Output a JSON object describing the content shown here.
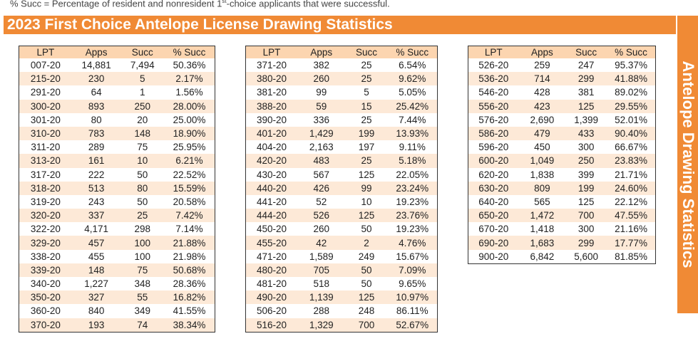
{
  "note": {
    "prefix": "% Succ = Percentage of resident and nonresident 1",
    "sup": "st",
    "suffix": "-choice applicants that were successful."
  },
  "title": "2023  First Choice Antelope License Drawing Statistics",
  "side_label": "Antelope Drawing Statistics",
  "colors": {
    "accent": "#f08a35",
    "header_bg": "#fcd5b0",
    "stripe": "#fde9d7"
  },
  "headers": [
    "LPT",
    "Apps",
    "Succ",
    "% Succ"
  ],
  "tables": [
    [
      [
        "007-20",
        "14,881",
        "7,494",
        "50.36%"
      ],
      [
        "215-20",
        "230",
        "5",
        "2.17%"
      ],
      [
        "291-20",
        "64",
        "1",
        "1.56%"
      ],
      [
        "300-20",
        "893",
        "250",
        "28.00%"
      ],
      [
        "301-20",
        "80",
        "20",
        "25.00%"
      ],
      [
        "310-20",
        "783",
        "148",
        "18.90%"
      ],
      [
        "311-20",
        "289",
        "75",
        "25.95%"
      ],
      [
        "313-20",
        "161",
        "10",
        "6.21%"
      ],
      [
        "317-20",
        "222",
        "50",
        "22.52%"
      ],
      [
        "318-20",
        "513",
        "80",
        "15.59%"
      ],
      [
        "319-20",
        "243",
        "50",
        "20.58%"
      ],
      [
        "320-20",
        "337",
        "25",
        "7.42%"
      ],
      [
        "322-20",
        "4,171",
        "298",
        "7.14%"
      ],
      [
        "329-20",
        "457",
        "100",
        "21.88%"
      ],
      [
        "338-20",
        "455",
        "100",
        "21.98%"
      ],
      [
        "339-20",
        "148",
        "75",
        "50.68%"
      ],
      [
        "340-20",
        "1,227",
        "348",
        "28.36%"
      ],
      [
        "350-20",
        "327",
        "55",
        "16.82%"
      ],
      [
        "360-20",
        "840",
        "349",
        "41.55%"
      ],
      [
        "370-20",
        "193",
        "74",
        "38.34%"
      ]
    ],
    [
      [
        "371-20",
        "382",
        "25",
        "6.54%"
      ],
      [
        "380-20",
        "260",
        "25",
        "9.62%"
      ],
      [
        "381-20",
        "99",
        "5",
        "5.05%"
      ],
      [
        "388-20",
        "59",
        "15",
        "25.42%"
      ],
      [
        "390-20",
        "336",
        "25",
        "7.44%"
      ],
      [
        "401-20",
        "1,429",
        "199",
        "13.93%"
      ],
      [
        "404-20",
        "2,163",
        "197",
        "9.11%"
      ],
      [
        "420-20",
        "483",
        "25",
        "5.18%"
      ],
      [
        "430-20",
        "567",
        "125",
        "22.05%"
      ],
      [
        "440-20",
        "426",
        "99",
        "23.24%"
      ],
      [
        "441-20",
        "52",
        "10",
        "19.23%"
      ],
      [
        "444-20",
        "526",
        "125",
        "23.76%"
      ],
      [
        "450-20",
        "260",
        "50",
        "19.23%"
      ],
      [
        "455-20",
        "42",
        "2",
        "4.76%"
      ],
      [
        "471-20",
        "1,589",
        "249",
        "15.67%"
      ],
      [
        "480-20",
        "705",
        "50",
        "7.09%"
      ],
      [
        "481-20",
        "518",
        "50",
        "9.65%"
      ],
      [
        "490-20",
        "1,139",
        "125",
        "10.97%"
      ],
      [
        "506-20",
        "288",
        "248",
        "86.11%"
      ],
      [
        "516-20",
        "1,329",
        "700",
        "52.67%"
      ]
    ],
    [
      [
        "526-20",
        "259",
        "247",
        "95.37%"
      ],
      [
        "536-20",
        "714",
        "299",
        "41.88%"
      ],
      [
        "546-20",
        "428",
        "381",
        "89.02%"
      ],
      [
        "556-20",
        "423",
        "125",
        "29.55%"
      ],
      [
        "576-20",
        "2,690",
        "1,399",
        "52.01%"
      ],
      [
        "586-20",
        "479",
        "433",
        "90.40%"
      ],
      [
        "596-20",
        "450",
        "300",
        "66.67%"
      ],
      [
        "600-20",
        "1,049",
        "250",
        "23.83%"
      ],
      [
        "620-20",
        "1,838",
        "399",
        "21.71%"
      ],
      [
        "630-20",
        "809",
        "199",
        "24.60%"
      ],
      [
        "640-20",
        "565",
        "125",
        "22.12%"
      ],
      [
        "650-20",
        "1,472",
        "700",
        "47.55%"
      ],
      [
        "670-20",
        "1,418",
        "300",
        "21.16%"
      ],
      [
        "690-20",
        "1,683",
        "299",
        "17.77%"
      ],
      [
        "900-20",
        "6,842",
        "5,600",
        "81.85%"
      ]
    ]
  ]
}
